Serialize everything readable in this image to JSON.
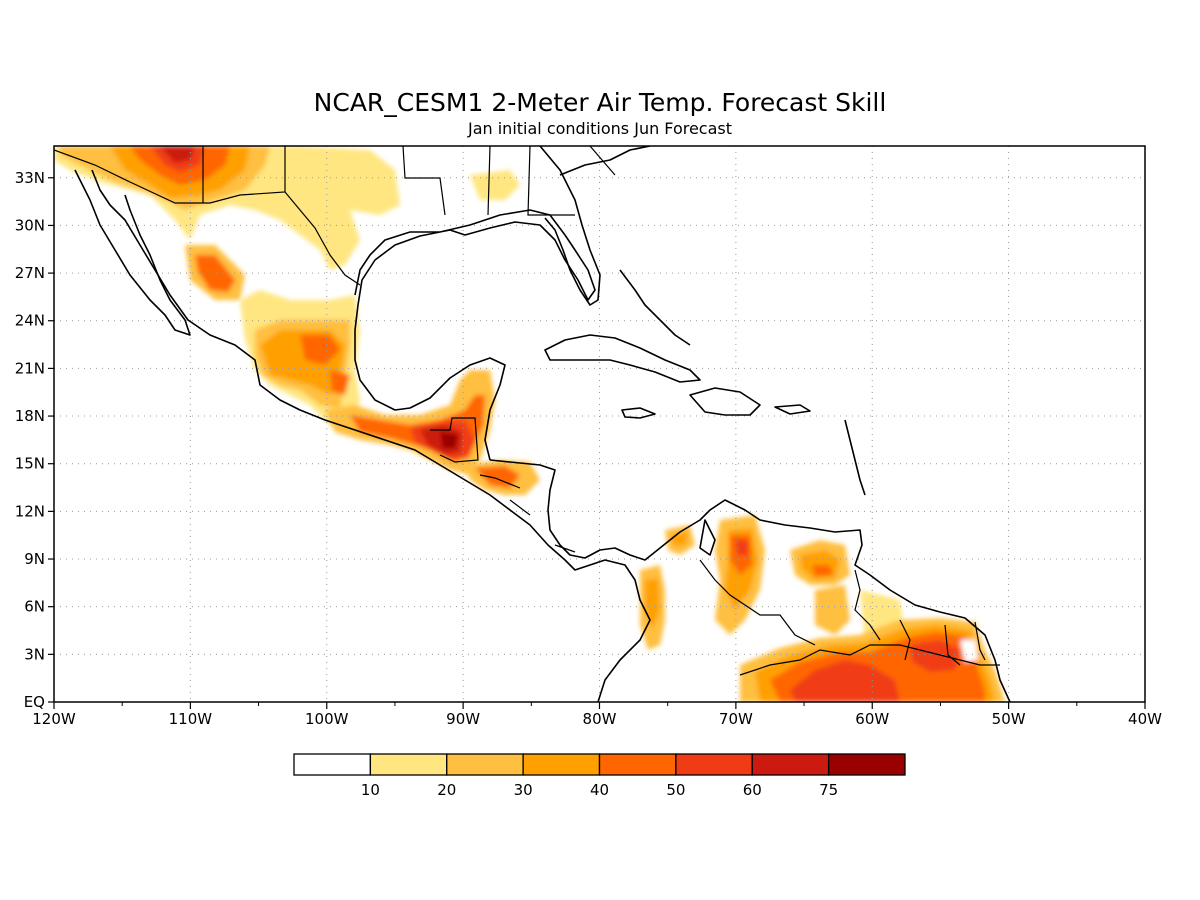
{
  "title": "NCAR_CESM1 2-Meter Air Temp. Forecast Skill",
  "subtitle": "Jan initial conditions  Jun Forecast",
  "axes": {
    "lon_range": [
      -120,
      -40
    ],
    "lat_range": [
      0,
      35
    ],
    "x_ticks": [
      "120W",
      "110W",
      "100W",
      "90W",
      "80W",
      "70W",
      "60W",
      "50W",
      "40W"
    ],
    "y_ticks": [
      "EQ",
      "3N",
      "6N",
      "9N",
      "12N",
      "15N",
      "18N",
      "21N",
      "24N",
      "27N",
      "30N",
      "33N"
    ]
  },
  "colorbar": {
    "labels": [
      "10",
      "20",
      "30",
      "40",
      "50",
      "60",
      "75"
    ],
    "colors": [
      "#ffffff",
      "#ffe680",
      "#ffbf40",
      "#ffa000",
      "#ff6600",
      "#f03c14",
      "#cc1a10",
      "#990000"
    ]
  },
  "chart_data": {
    "type": "heatmap",
    "title": "NCAR_CESM1 2-Meter Air Temp. Forecast Skill",
    "subtitle": "Jan initial conditions  Jun Forecast",
    "xlim": [
      -120,
      -40
    ],
    "ylim": [
      0,
      35
    ],
    "levels": [
      10,
      20,
      30,
      40,
      50,
      60,
      75
    ],
    "regions": [
      {
        "lon": -111,
        "lat": 34,
        "value": 60
      },
      {
        "lon": -108,
        "lat": 33,
        "value": 40
      },
      {
        "lon": -100,
        "lat": 31,
        "value": 20
      },
      {
        "lon": -107,
        "lat": 27,
        "value": 50
      },
      {
        "lon": -102,
        "lat": 23,
        "value": 40
      },
      {
        "lon": -98,
        "lat": 19,
        "value": 50
      },
      {
        "lon": -92,
        "lat": 16,
        "value": 75
      },
      {
        "lon": -89,
        "lat": 19,
        "value": 50
      },
      {
        "lon": -87,
        "lat": 14,
        "value": 40
      },
      {
        "lon": -75,
        "lat": 5,
        "value": 30
      },
      {
        "lon": -70,
        "lat": 9,
        "value": 50
      },
      {
        "lon": -64,
        "lat": 8,
        "value": 30
      },
      {
        "lon": -62,
        "lat": 2,
        "value": 60
      },
      {
        "lon": -55,
        "lat": 3,
        "value": 50
      }
    ]
  }
}
